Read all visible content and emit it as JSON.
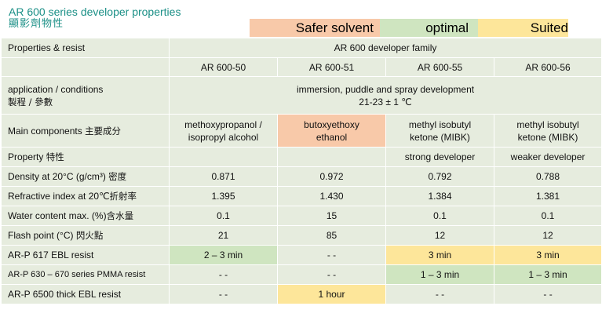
{
  "title": {
    "en": "AR 600 series developer properties",
    "zh": "顯影劑物性"
  },
  "legend": {
    "safer": "Safer solvent",
    "optimal": "optimal",
    "suited": "Suited"
  },
  "colors": {
    "title": "#1a8f86",
    "table_bg": "#e6ecde",
    "safer": "#f8c9a9",
    "optimal": "#cfe5c0",
    "suited": "#fde69a"
  },
  "table": {
    "header_label": "Properties & resist",
    "family": "AR 600 developer family",
    "products": [
      "AR 600-50",
      "AR 600-51",
      "AR 600-55",
      "AR 600-56"
    ],
    "application": {
      "label_en": "application / conditions",
      "label_zh": "製程 / 參數",
      "value_line1": "immersion, puddle and spray development",
      "value_line2": "21-23 ± 1 ℃"
    },
    "main_components": {
      "label_en": "Main components",
      "label_zh": "主要成分",
      "values": [
        [
          "methoxypropanol /",
          "isopropyl alcohol"
        ],
        [
          "butoxyethoxy",
          "ethanol"
        ],
        [
          "methyl isobutyl",
          "ketone (MIBK)"
        ],
        [
          "methyl isobutyl",
          "ketone (MIBK)"
        ]
      ]
    },
    "property": {
      "label_en": "Property",
      "label_zh": "特性",
      "values": [
        "",
        "",
        "strong developer",
        "weaker developer"
      ]
    },
    "density": {
      "label_en": "Density at 20°C (g/cm³)",
      "label_zh": "密度",
      "values": [
        "0.871",
        "0.972",
        "0.792",
        "0.788"
      ]
    },
    "refractive": {
      "label_en": "Refractive index at 20℃",
      "label_zh": "折射率",
      "values": [
        "1.395",
        "1.430",
        "1.384",
        "1.381"
      ]
    },
    "water": {
      "label_en": "Water content max. (%)",
      "label_zh": "含水量",
      "values": [
        "0.1",
        "15",
        "0.1",
        "0.1"
      ]
    },
    "flash": {
      "label_en": "Flash point (°C)",
      "label_zh": "閃火點",
      "values": [
        "21",
        "85",
        "12",
        "12"
      ]
    },
    "resists": [
      {
        "label": "AR-P 617 EBL resist",
        "values": [
          "2 – 3 min",
          "- -",
          "3 min",
          "3 min"
        ],
        "ratings": [
          "optimal",
          "",
          "suited",
          "suited"
        ]
      },
      {
        "label": "AR-P 630 – 670 series PMMA resist",
        "values": [
          "- -",
          "- -",
          "1 – 3 min",
          "1 – 3 min"
        ],
        "ratings": [
          "",
          "",
          "optimal",
          "optimal"
        ]
      },
      {
        "label": "AR-P 6500 thick EBL resist",
        "values": [
          "- -",
          "1 hour",
          "- -",
          "- -"
        ],
        "ratings": [
          "",
          "suited",
          "",
          ""
        ]
      }
    ]
  }
}
